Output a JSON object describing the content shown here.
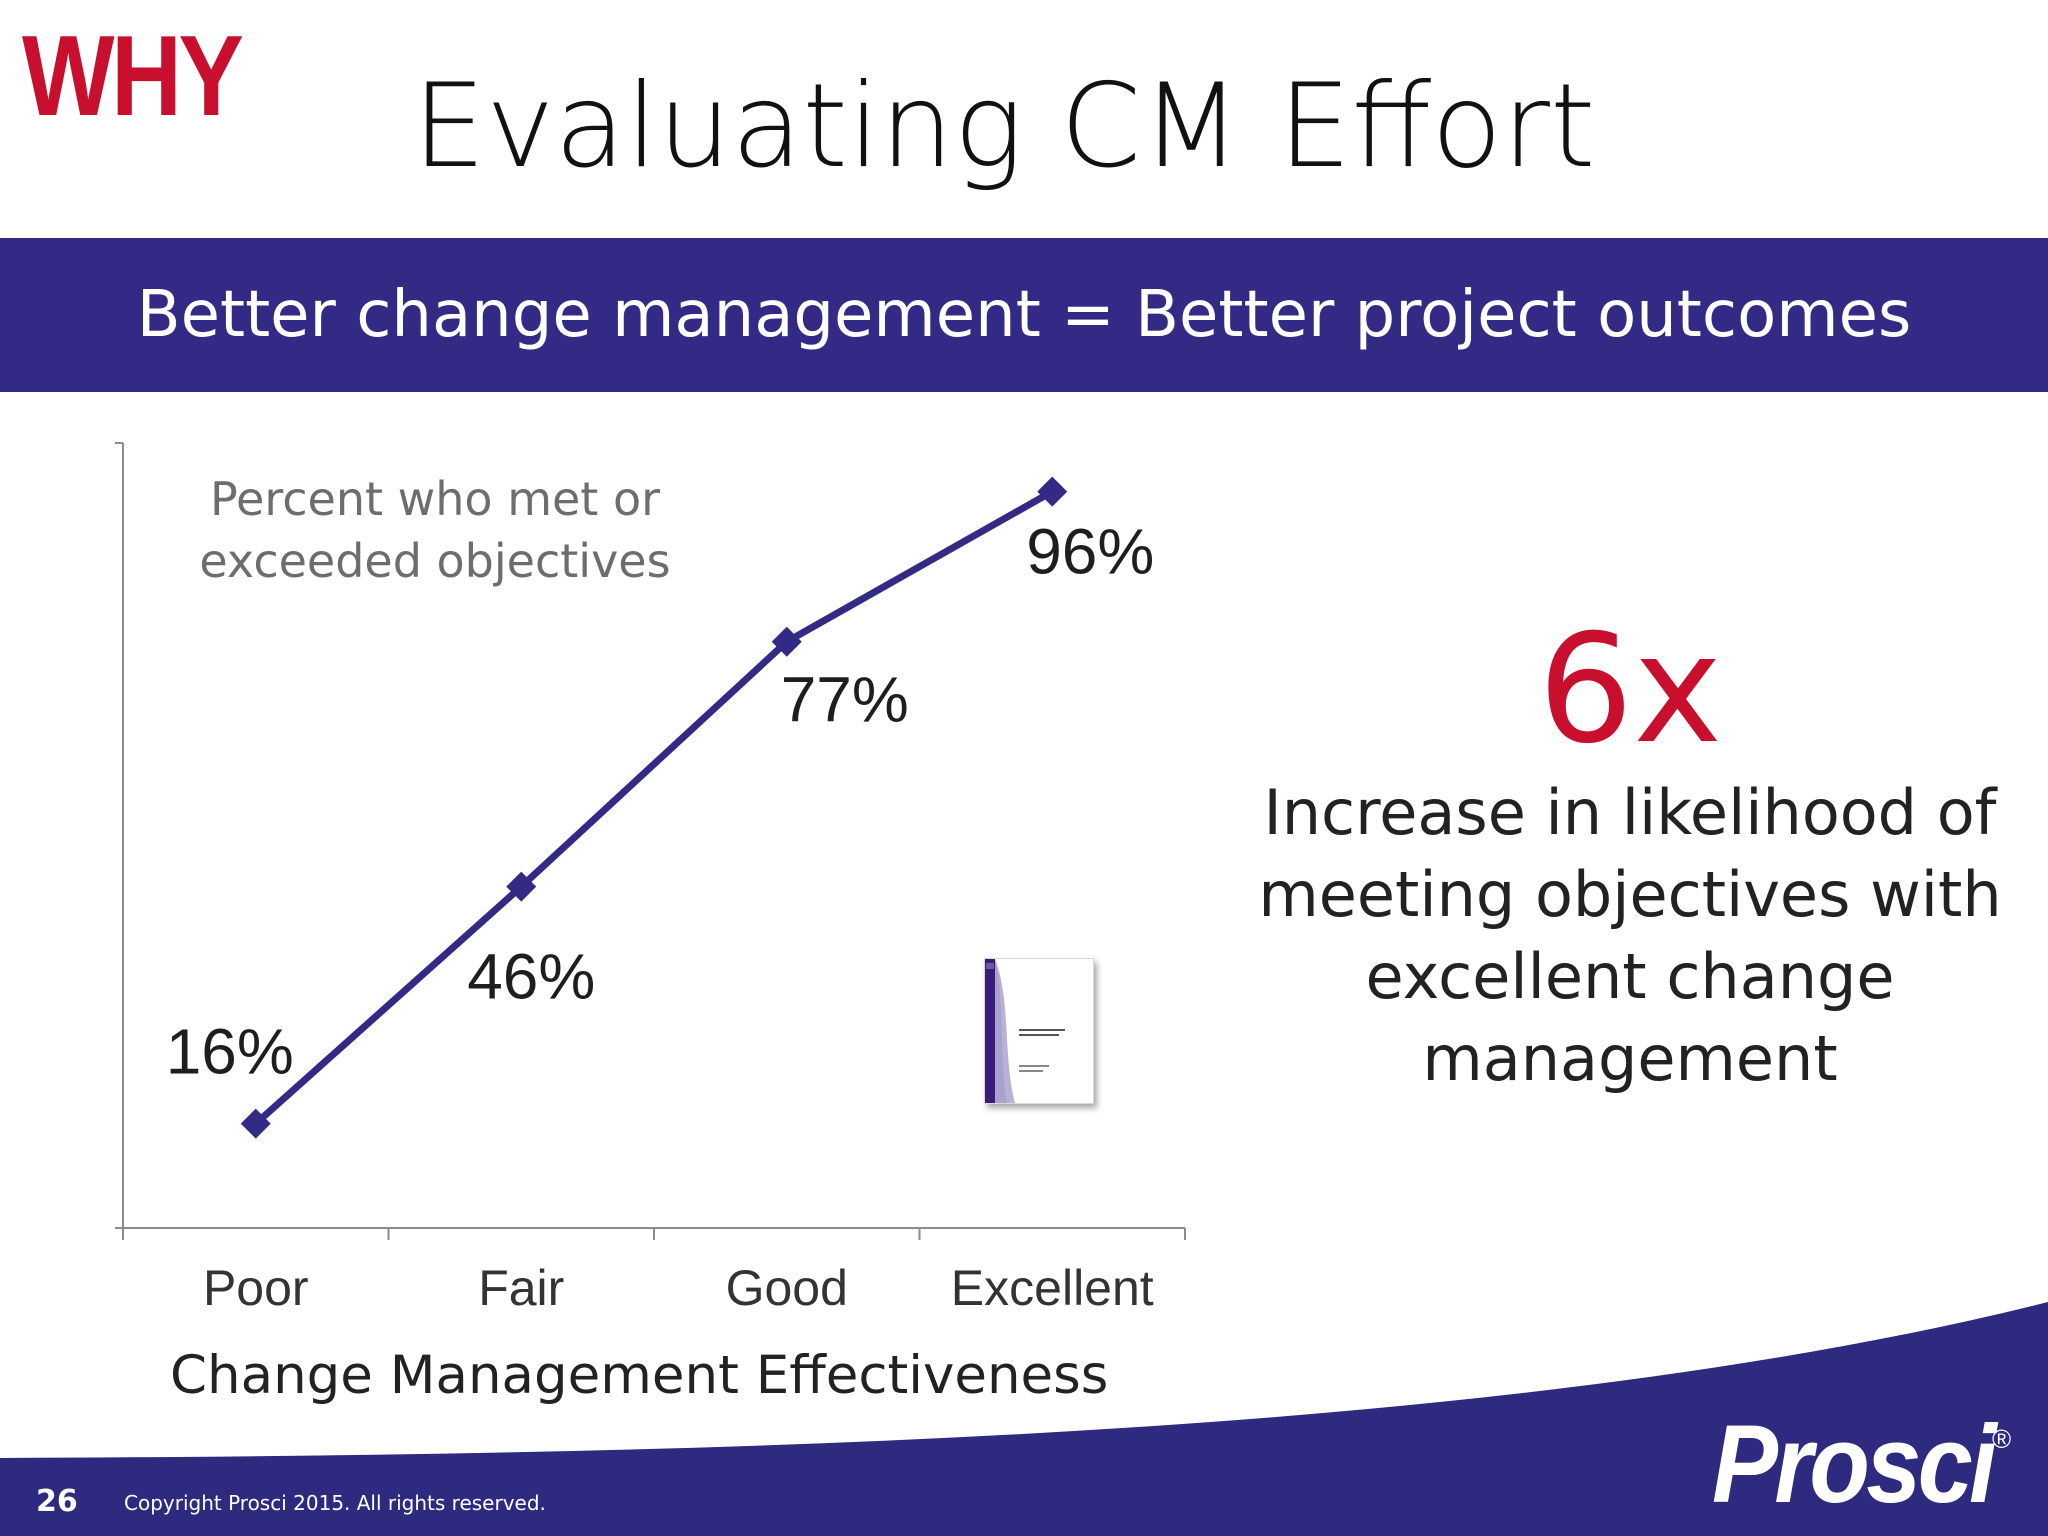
{
  "slide": {
    "tag": "WHY",
    "title": "Evaluating CM Effort",
    "banner": "Better change management = Better project outcomes"
  },
  "chart_data": {
    "type": "line",
    "categories": [
      "Poor",
      "Fair",
      "Good",
      "Excellent"
    ],
    "series": [
      {
        "values": [
          16,
          46,
          77,
          96
        ]
      }
    ],
    "data_labels": [
      "16%",
      "46%",
      "77%",
      "96%"
    ],
    "ylabel": "Percent who met or exceeded objectives",
    "xlabel": "Change Management Effectiveness",
    "ylim": [
      0,
      100
    ],
    "grid": false,
    "legend": "none",
    "series_color": "#332a86"
  },
  "callout": {
    "value": "6x",
    "description": "Increase in likelihood of meeting objectives with excellent change management"
  },
  "footer": {
    "page_number": "26",
    "copyright": "Copyright Prosci 2015. All rights reserved.",
    "logo": "Prosci",
    "logo_mark": "®"
  },
  "colors": {
    "accent_red": "#c8102e",
    "banner_blue": "#332a86",
    "footer_blue": "#2e2a80"
  }
}
